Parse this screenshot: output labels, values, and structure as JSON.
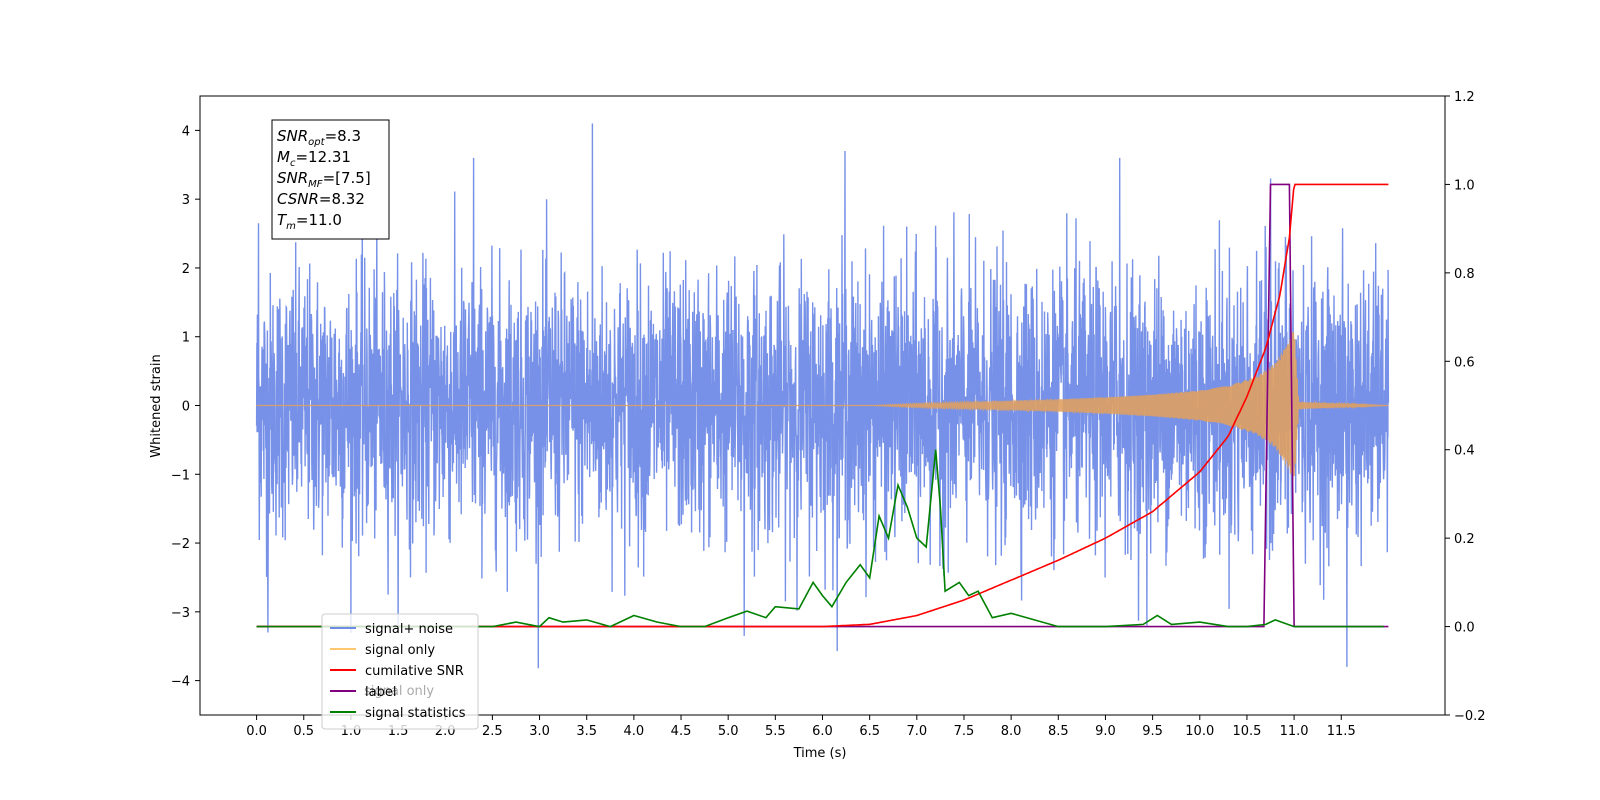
{
  "chart_data": {
    "type": "line",
    "xlabel": "Time (s)",
    "ylabel": "Whitened strain",
    "xlim": [
      -0.6,
      12.6
    ],
    "ylim": [
      -4.5,
      4.5
    ],
    "y2lim": [
      -0.2,
      1.2
    ],
    "xticks": [
      0.0,
      0.5,
      1.0,
      1.5,
      2.0,
      2.5,
      3.0,
      3.5,
      4.0,
      4.5,
      5.0,
      5.5,
      6.0,
      6.5,
      7.0,
      7.5,
      8.0,
      8.5,
      9.0,
      9.5,
      10.0,
      10.5,
      11.0,
      11.5
    ],
    "yticks": [
      -4,
      -3,
      -2,
      -1,
      0,
      1,
      2,
      3,
      4
    ],
    "y2ticks": [
      -0.2,
      0.0,
      0.2,
      0.4,
      0.6,
      0.8,
      1.0,
      1.2
    ],
    "grid": false,
    "legend_position": "lower-left",
    "annotation": {
      "lines": [
        {
          "base": "SNR",
          "sub": "opt",
          "rest": "=8.3"
        },
        {
          "base": "M",
          "sub": "c",
          "rest": "=12.31"
        },
        {
          "base": "SNR",
          "sub": "MF",
          "rest": "=[7.5]"
        },
        {
          "base": "CSNR",
          "sub": "",
          "rest": "=8.32"
        },
        {
          "base": "T",
          "sub": "m",
          "rest": "=11.0"
        }
      ]
    },
    "legend": [
      {
        "label": "signal+ noise",
        "color": "#6f8be6"
      },
      {
        "label": "signal only",
        "color": "#ffc870"
      },
      {
        "label": "cumilative SNR",
        "color": "#ff0000"
      },
      {
        "label": "label",
        "color": "#800080"
      },
      {
        "label": "signal statistics",
        "color": "#008000"
      }
    ],
    "hidden_legend_text": "signal only",
    "series": [
      {
        "name": "signal+ noise",
        "axis": "left",
        "color": "#6f8be6",
        "x_range": [
          0.0,
          12.0
        ],
        "std": 0.95,
        "notable_peaks": [
          [
            0.02,
            2.65
          ],
          [
            0.12,
            -3.3
          ],
          [
            3.56,
            4.1
          ],
          [
            2.3,
            3.6
          ],
          [
            6.24,
            3.7
          ],
          [
            9.15,
            3.6
          ],
          [
            10.75,
            3.3
          ],
          [
            5.17,
            -3.35
          ],
          [
            11.56,
            -3.8
          ],
          [
            9.44,
            -3.2
          ]
        ]
      },
      {
        "name": "signal only",
        "axis": "left",
        "color": "#e0a060",
        "envelope_x": [
          0.0,
          6.5,
          7.0,
          7.5,
          8.0,
          8.5,
          9.0,
          9.5,
          10.0,
          10.3,
          10.6,
          10.8,
          10.95,
          11.0,
          11.05,
          12.0
        ],
        "envelope_y": [
          0.0,
          0.0,
          0.03,
          0.05,
          0.07,
          0.09,
          0.12,
          0.16,
          0.22,
          0.29,
          0.42,
          0.62,
          0.95,
          1.15,
          0.05,
          0.0
        ]
      },
      {
        "name": "cumilative SNR",
        "axis": "right",
        "color": "#ff0000",
        "x": [
          0.0,
          6.0,
          6.5,
          7.0,
          7.5,
          8.0,
          8.5,
          9.0,
          9.5,
          10.0,
          10.3,
          10.5,
          10.7,
          10.85,
          10.95,
          11.0,
          12.0
        ],
        "y": [
          0.0,
          0.0,
          0.005,
          0.025,
          0.06,
          0.105,
          0.15,
          0.2,
          0.26,
          0.35,
          0.43,
          0.52,
          0.63,
          0.75,
          0.88,
          1.0,
          1.0
        ]
      },
      {
        "name": "label",
        "axis": "right",
        "color": "#800080",
        "x": [
          0.0,
          10.68,
          10.75,
          10.95,
          11.0,
          12.0
        ],
        "y": [
          0.0,
          0.0,
          1.0,
          1.0,
          0.0,
          0.0
        ]
      },
      {
        "name": "signal statistics",
        "axis": "right",
        "color": "#008000",
        "x": [
          0.0,
          2.5,
          2.75,
          3.0,
          3.1,
          3.25,
          3.5,
          3.75,
          4.0,
          4.25,
          4.5,
          4.75,
          5.0,
          5.2,
          5.4,
          5.5,
          5.75,
          5.9,
          6.0,
          6.1,
          6.25,
          6.4,
          6.5,
          6.6,
          6.7,
          6.8,
          6.9,
          7.0,
          7.1,
          7.2,
          7.25,
          7.3,
          7.45,
          7.55,
          7.65,
          7.8,
          8.0,
          8.5,
          9.0,
          9.4,
          9.55,
          9.7,
          10.0,
          10.3,
          10.5,
          10.7,
          10.8,
          11.0,
          11.95
        ],
        "y": [
          0.0,
          0.0,
          0.01,
          0.0,
          0.02,
          0.01,
          0.015,
          0.0,
          0.025,
          0.01,
          0.0,
          0.0,
          0.02,
          0.035,
          0.02,
          0.045,
          0.04,
          0.1,
          0.07,
          0.045,
          0.1,
          0.14,
          0.11,
          0.25,
          0.2,
          0.32,
          0.27,
          0.2,
          0.18,
          0.4,
          0.27,
          0.08,
          0.1,
          0.07,
          0.08,
          0.02,
          0.03,
          0.0,
          0.0,
          0.005,
          0.025,
          0.005,
          0.01,
          0.0,
          0.0,
          0.005,
          0.015,
          0.0,
          0.0
        ]
      }
    ]
  }
}
